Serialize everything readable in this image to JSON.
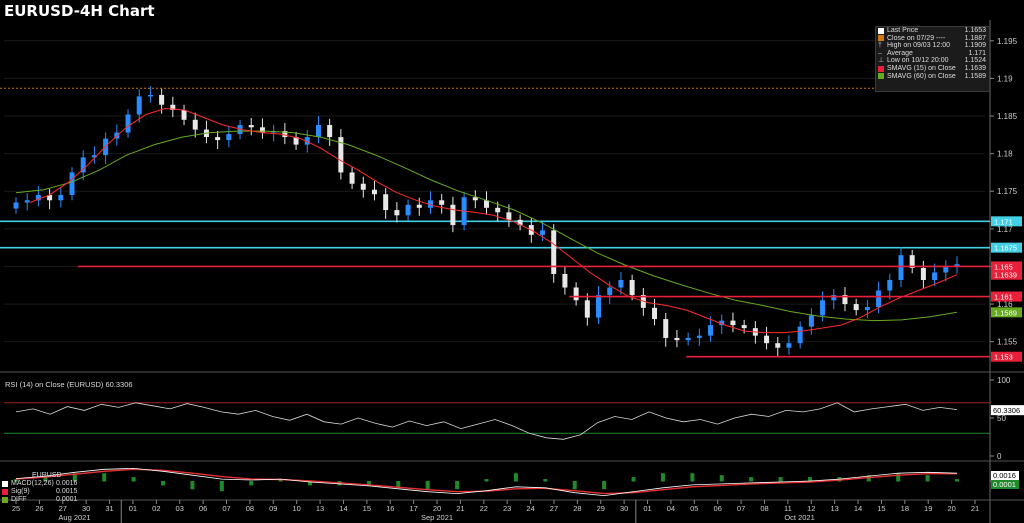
{
  "title": "EURUSD-4H Chart",
  "colors": {
    "up": "#2b8cff",
    "down": "#e8e8e8",
    "sma15": "#ff2b2b",
    "sma60": "#66aa22",
    "cyan": "#43d0e6",
    "red_line": "#e8203a",
    "orange": "#d07810",
    "rsi": "#d8d8d8",
    "macd": "#ffffff",
    "signal": "#e83030",
    "green_fill": "#1f8a2a"
  },
  "legend": [
    {
      "label": "Last Price",
      "value": "1.1653",
      "icon": "white-square"
    },
    {
      "label": "Close on 07/29 ----",
      "value": "1.1887",
      "icon": "orange-square"
    },
    {
      "label": "High on 09/03 12:00",
      "value": "1.1909",
      "icon": "high-mark"
    },
    {
      "label": "Average",
      "value": "1.171",
      "icon": "average-mark"
    },
    {
      "label": "Low on 10/12 20:00",
      "value": "1.1524",
      "icon": "low-mark"
    },
    {
      "label": "SMAVG (15)  on Close",
      "value": "1.1639",
      "icon": "red-square"
    },
    {
      "label": "SMAVG (60)  on Close",
      "value": "1.1589",
      "icon": "green-square"
    }
  ],
  "rsi_label": "RSI (14)  on Close (EURUSD) 60.3306",
  "macd_title": "EURUSD",
  "macd_legend": [
    {
      "label": "MACD(12,26)",
      "value": "0.0016",
      "icon": "white-square"
    },
    {
      "label": "Sig(9)",
      "value": "0.0015",
      "icon": "red-square"
    },
    {
      "label": "DIFF",
      "value": "0.0001",
      "icon": "green-square"
    }
  ],
  "chart_data": {
    "type": "candlestick",
    "title": "EURUSD-4H Chart",
    "ylim": [
      1.1515,
      1.1975
    ],
    "y_ticks": [
      "1.195",
      "1.19",
      "1.185",
      "1.18",
      "1.175",
      "1.17",
      "1.165",
      "1.16",
      "1.155"
    ],
    "x_days": [
      "25",
      "26",
      "27",
      "30",
      "31",
      "01",
      "02",
      "03",
      "06",
      "07",
      "08",
      "09",
      "10",
      "13",
      "14",
      "15",
      "16",
      "17",
      "20",
      "21",
      "22",
      "23",
      "24",
      "27",
      "28",
      "29",
      "30",
      "01",
      "04",
      "05",
      "06",
      "07",
      "08",
      "11",
      "12",
      "13",
      "14",
      "15",
      "18",
      "19",
      "20",
      "21"
    ],
    "x_months": [
      "Aug 2021",
      "Sep 2021",
      "Oct 2021"
    ],
    "close_path": [
      1.1735,
      1.1738,
      1.1745,
      1.1738,
      1.1745,
      1.1775,
      1.1795,
      1.1798,
      1.182,
      1.1828,
      1.1852,
      1.1876,
      1.1878,
      1.1865,
      1.1858,
      1.1845,
      1.1832,
      1.1822,
      1.1818,
      1.1826,
      1.1838,
      1.1835,
      1.1828,
      1.183,
      1.1822,
      1.1812,
      1.1822,
      1.1838,
      1.1822,
      1.1775,
      1.176,
      1.1752,
      1.1746,
      1.1725,
      1.1718,
      1.1732,
      1.1728,
      1.1738,
      1.1732,
      1.1705,
      1.1742,
      1.1738,
      1.1728,
      1.1722,
      1.1712,
      1.1705,
      1.1692,
      1.1698,
      1.164,
      1.1622,
      1.1605,
      1.1582,
      1.1612,
      1.1622,
      1.1632,
      1.1612,
      1.1595,
      1.158,
      1.1555,
      1.1552,
      1.1555,
      1.1558,
      1.1572,
      1.1578,
      1.1572,
      1.1568,
      1.1558,
      1.1548,
      1.1542,
      1.1548,
      1.157,
      1.1585,
      1.1605,
      1.1612,
      1.16,
      1.1592,
      1.1596,
      1.1618,
      1.1632,
      1.1665,
      1.1648,
      1.1632,
      1.1642,
      1.165,
      1.1653
    ],
    "sma15_path": [
      1.1735,
      1.1745,
      1.1762,
      1.1785,
      1.1812,
      1.1835,
      1.1852,
      1.186,
      1.1858,
      1.1848,
      1.1838,
      1.1832,
      1.1828,
      1.1826,
      1.182,
      1.1808,
      1.1792,
      1.1778,
      1.1762,
      1.1748,
      1.1738,
      1.173,
      1.1725,
      1.1722,
      1.1718,
      1.171,
      1.1698,
      1.1682,
      1.1662,
      1.1642,
      1.1625,
      1.161,
      1.1602,
      1.1598,
      1.1592,
      1.1582,
      1.1572,
      1.1564,
      1.1562,
      1.1562,
      1.1564,
      1.1568,
      1.1572,
      1.1582,
      1.1596,
      1.1608,
      1.1618,
      1.1628,
      1.1639
    ],
    "sma60_path": [
      1.1748,
      1.1752,
      1.1762,
      1.1778,
      1.1798,
      1.1812,
      1.1822,
      1.1828,
      1.183,
      1.183,
      1.1828,
      1.1822,
      1.1812,
      1.1798,
      1.1782,
      1.1765,
      1.175,
      1.1738,
      1.1725,
      1.1708,
      1.1688,
      1.1668,
      1.1652,
      1.1638,
      1.1626,
      1.1615,
      1.1605,
      1.1598,
      1.159,
      1.1584,
      1.158,
      1.1578,
      1.1579,
      1.1583,
      1.1589
    ],
    "reference_lines": [
      {
        "label": "1.171",
        "value": 1.171,
        "color": "cyan"
      },
      {
        "label": "1.1675",
        "value": 1.1675,
        "color": "cyan"
      },
      {
        "label": "1.1887",
        "value": 1.1887,
        "color": "orange"
      }
    ],
    "level_lines": [
      {
        "label": "1.165",
        "value": 1.165,
        "from_day": "30"
      },
      {
        "label": "1.161",
        "value": 1.161,
        "from_day": "28"
      },
      {
        "label": "1.153",
        "value": 1.153,
        "from_day": "05"
      }
    ],
    "price_tags": [
      {
        "label": "1.171",
        "value": 1.171,
        "color": "cyan"
      },
      {
        "label": "1.1675",
        "value": 1.1675,
        "color": "cyan"
      },
      {
        "label": "1.165",
        "value": 1.165,
        "color": "red_line"
      },
      {
        "label": "1.1639",
        "value": 1.1639,
        "color": "red_line"
      },
      {
        "label": "1.161",
        "value": 1.161,
        "color": "red_line"
      },
      {
        "label": "1.1589",
        "value": 1.1589,
        "color": "sma60"
      },
      {
        "label": "1.153",
        "value": 1.153,
        "color": "red_line"
      }
    ],
    "rsi": {
      "value": 60.3306,
      "value_label": "60.3306",
      "ylim": [
        0,
        100
      ],
      "ticks": [
        "100",
        "50",
        "0"
      ],
      "overbought": 70,
      "oversold": 30,
      "path": [
        58,
        62,
        55,
        65,
        60,
        68,
        64,
        70,
        66,
        62,
        69,
        64,
        58,
        55,
        60,
        52,
        47,
        55,
        45,
        42,
        50,
        43,
        38,
        46,
        40,
        45,
        36,
        42,
        48,
        40,
        30,
        24,
        22,
        28,
        44,
        52,
        48,
        58,
        50,
        45,
        48,
        42,
        50,
        55,
        52,
        60,
        58,
        62,
        70,
        58,
        62,
        65,
        68,
        60,
        64,
        61
      ]
    },
    "macd": {
      "macd": 0.0016,
      "signal": 0.0015,
      "diff": 0.0001,
      "ticks": [
        "0"
      ],
      "price_tag": "0.0016",
      "diff_tag": "0.0001",
      "macd_path": [
        0.0005,
        0.001,
        0.0018,
        0.0024,
        0.0026,
        0.002,
        0.0012,
        0.0004,
        0.0002,
        0.0004,
        -0.0002,
        -0.0006,
        -0.001,
        -0.0016,
        -0.0022,
        -0.0026,
        -0.002,
        -0.0012,
        -0.0014,
        -0.0024,
        -0.003,
        -0.0022,
        -0.0014,
        -0.0008,
        -0.0006,
        -0.0004,
        -0.0002,
        0.0,
        0.0004,
        0.001,
        0.0016,
        0.0018,
        0.0016
      ],
      "signal_path": [
        0.0004,
        0.0008,
        0.0014,
        0.002,
        0.0024,
        0.0022,
        0.0016,
        0.0009,
        0.0004,
        0.0003,
        0.0,
        -0.0004,
        -0.0008,
        -0.0013,
        -0.0018,
        -0.0022,
        -0.0021,
        -0.0016,
        -0.0015,
        -0.002,
        -0.0026,
        -0.0024,
        -0.0018,
        -0.0012,
        -0.0009,
        -0.0006,
        -0.0004,
        -0.0002,
        0.0002,
        0.0007,
        0.0012,
        0.0015,
        0.0015
      ]
    }
  }
}
